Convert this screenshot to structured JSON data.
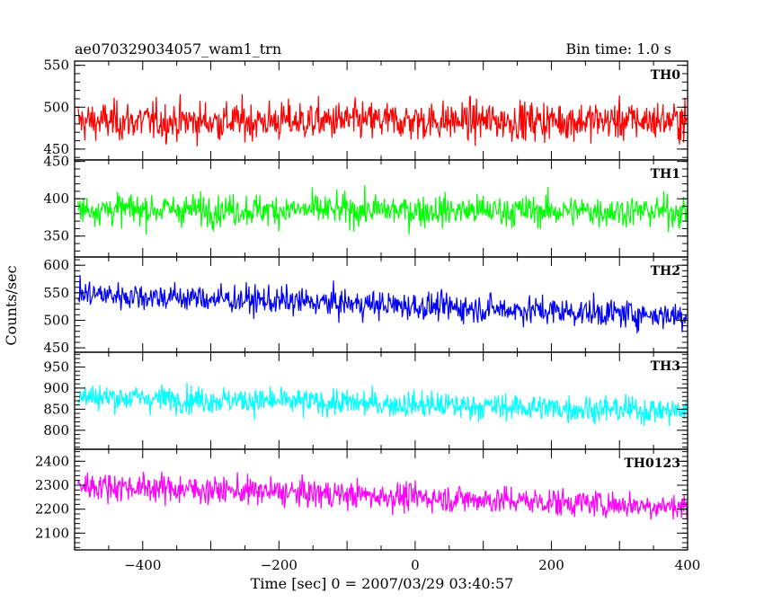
{
  "chart_data": {
    "type": "line",
    "title": "ae070329034057_wam1_trn",
    "bin_time": "Bin time: 1.0 s",
    "xlabel": "Time [sec] 0 = 2007/03/29 03:40:57",
    "ylabel": "Counts/sec",
    "xlim": [
      -500,
      400
    ],
    "x_ticks": [
      -400,
      -200,
      0,
      200,
      400
    ],
    "panels": [
      {
        "name": "TH0",
        "color": "#ff0000",
        "ylim": [
          437,
          555
        ],
        "y_ticks": [
          450,
          500,
          550
        ],
        "mean_start": 483,
        "mean_end": 484,
        "noise": 22
      },
      {
        "name": "TH1",
        "color": "#00ff00",
        "ylim": [
          322,
          452
        ],
        "y_ticks": [
          350,
          400,
          450
        ],
        "mean_start": 386,
        "mean_end": 383,
        "noise": 20
      },
      {
        "name": "TH2",
        "color": "#0000ff",
        "ylim": [
          442,
          615
        ],
        "y_ticks": [
          450,
          500,
          550,
          600
        ],
        "mean_start": 548,
        "mean_end": 508,
        "noise": 24
      },
      {
        "name": "TH3",
        "color": "#00ffff",
        "ylim": [
          755,
          985
        ],
        "y_ticks": [
          800,
          850,
          900,
          950
        ],
        "mean_start": 880,
        "mean_end": 845,
        "noise": 30
      },
      {
        "name": "TH0123",
        "color": "#ff00ff",
        "ylim": [
          2030,
          2450
        ],
        "y_ticks": [
          2100,
          2200,
          2300,
          2400
        ],
        "mean_start": 2300,
        "mean_end": 2210,
        "noise": 55
      }
    ]
  }
}
